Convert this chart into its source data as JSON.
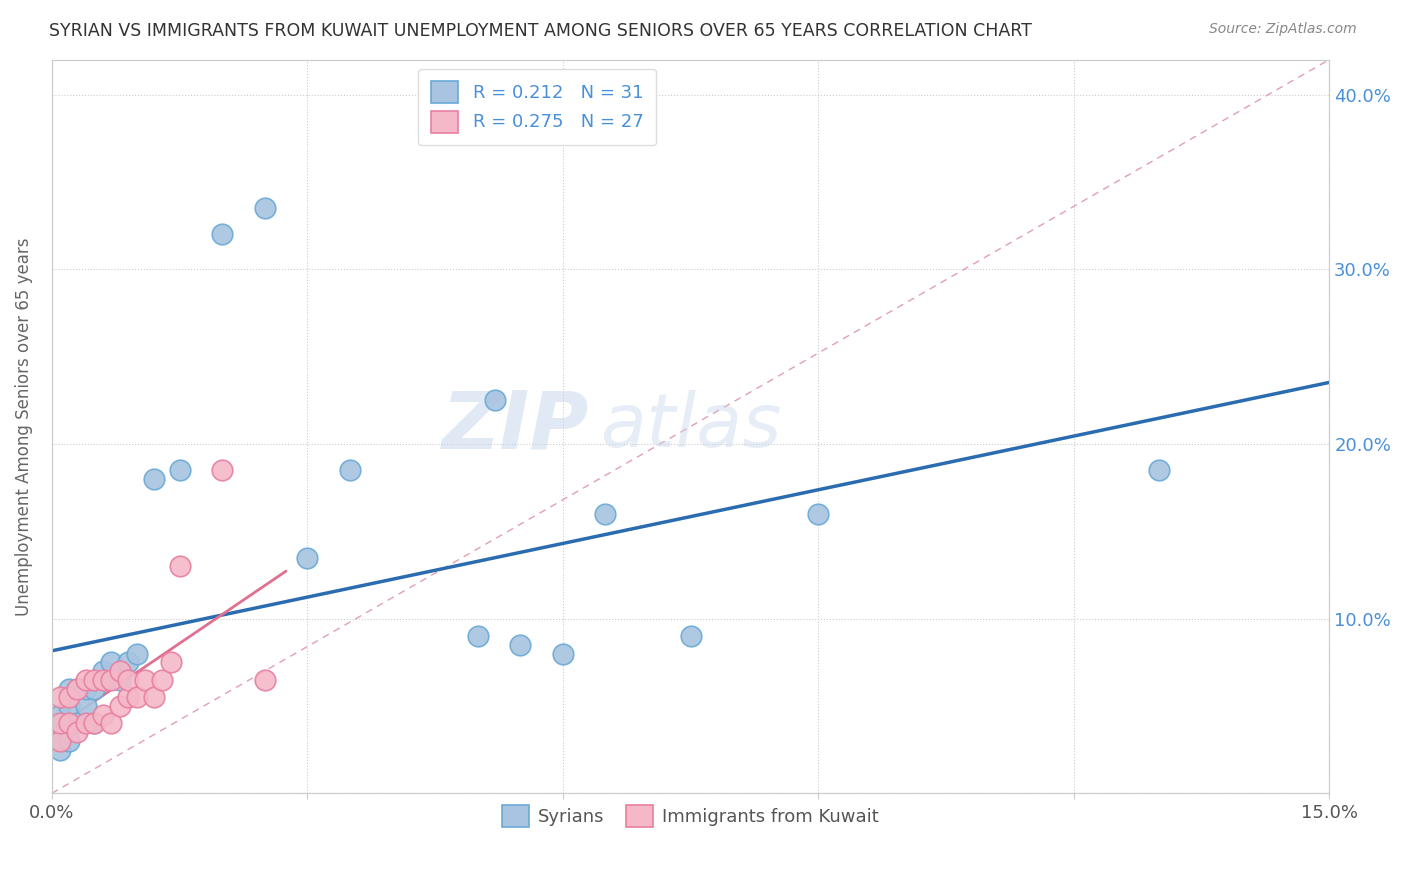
{
  "title": "SYRIAN VS IMMIGRANTS FROM KUWAIT UNEMPLOYMENT AMONG SENIORS OVER 65 YEARS CORRELATION CHART",
  "source": "Source: ZipAtlas.com",
  "ylabel": "Unemployment Among Seniors over 65 years",
  "xlim": [
    0.0,
    0.15
  ],
  "ylim": [
    0.0,
    0.42
  ],
  "xticks": [
    0.0,
    0.03,
    0.06,
    0.09,
    0.12,
    0.15
  ],
  "yticks": [
    0.0,
    0.1,
    0.2,
    0.3,
    0.4
  ],
  "syrians_R": 0.212,
  "syrians_N": 31,
  "kuwait_R": 0.275,
  "kuwait_N": 27,
  "syrians_color": "#a8c4e0",
  "syrians_edge": "#6aaad6",
  "kuwait_color": "#f4b8c8",
  "kuwait_edge": "#e87fa0",
  "trend_syrians_color": "#2b6cb0",
  "trend_kuwait_color": "#e07090",
  "diagonal_color": "#d0b0b8",
  "background_color": "#ffffff",
  "watermark_zip": "ZIP",
  "watermark_atlas": "atlas",
  "syrians_x": [
    0.001,
    0.001,
    0.001,
    0.002,
    0.002,
    0.002,
    0.003,
    0.003,
    0.004,
    0.004,
    0.005,
    0.005,
    0.006,
    0.007,
    0.008,
    0.009,
    0.01,
    0.012,
    0.015,
    0.02,
    0.025,
    0.03,
    0.035,
    0.05,
    0.052,
    0.055,
    0.06,
    0.065,
    0.075,
    0.09,
    0.13
  ],
  "syrians_y": [
    0.025,
    0.035,
    0.045,
    0.03,
    0.05,
    0.06,
    0.04,
    0.06,
    0.05,
    0.06,
    0.04,
    0.06,
    0.07,
    0.075,
    0.065,
    0.075,
    0.08,
    0.18,
    0.185,
    0.32,
    0.335,
    0.135,
    0.185,
    0.09,
    0.225,
    0.085,
    0.08,
    0.16,
    0.09,
    0.16,
    0.185
  ],
  "kuwait_x": [
    0.001,
    0.001,
    0.001,
    0.002,
    0.002,
    0.003,
    0.003,
    0.004,
    0.004,
    0.005,
    0.005,
    0.006,
    0.006,
    0.007,
    0.007,
    0.008,
    0.008,
    0.009,
    0.009,
    0.01,
    0.011,
    0.012,
    0.013,
    0.014,
    0.015,
    0.02,
    0.025
  ],
  "kuwait_y": [
    0.03,
    0.04,
    0.055,
    0.04,
    0.055,
    0.035,
    0.06,
    0.04,
    0.065,
    0.04,
    0.065,
    0.045,
    0.065,
    0.04,
    0.065,
    0.05,
    0.07,
    0.055,
    0.065,
    0.055,
    0.065,
    0.055,
    0.065,
    0.075,
    0.13,
    0.185,
    0.065
  ]
}
